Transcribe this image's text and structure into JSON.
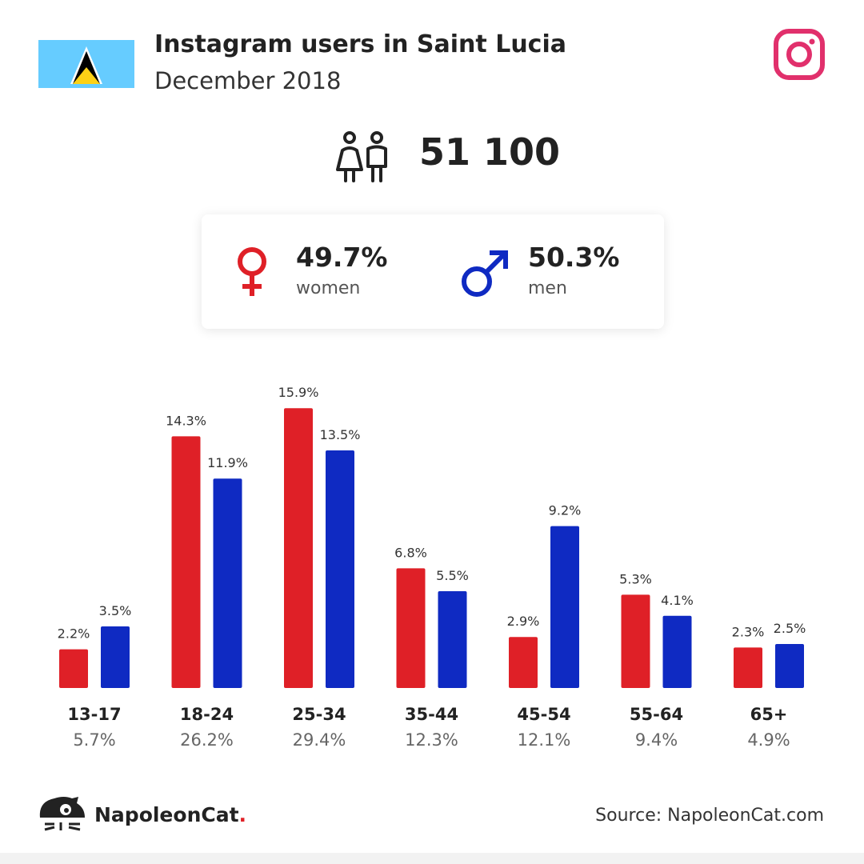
{
  "header": {
    "title": "Instagram users in Saint Lucia",
    "subtitle": "December 2018"
  },
  "summary": {
    "total_users": "51 100"
  },
  "gender": {
    "women": {
      "pct": "49.7%",
      "label": "women"
    },
    "men": {
      "pct": "50.3%",
      "label": "men"
    }
  },
  "colors": {
    "women": "#df2027",
    "men": "#0f2ac2",
    "instagram": "#e1306c",
    "flag_blue": "#66ccff",
    "flag_gold": "#fcd116"
  },
  "chart_data": {
    "type": "bar",
    "categories": [
      "13-17",
      "18-24",
      "25-34",
      "35-44",
      "45-54",
      "55-64",
      "65+"
    ],
    "category_totals": [
      "5.7%",
      "26.2%",
      "29.4%",
      "12.3%",
      "12.1%",
      "9.4%",
      "4.9%"
    ],
    "series": [
      {
        "name": "women",
        "values": [
          2.2,
          14.3,
          15.9,
          6.8,
          2.9,
          5.3,
          2.3
        ],
        "color": "#df2027"
      },
      {
        "name": "men",
        "values": [
          3.5,
          11.9,
          13.5,
          5.5,
          9.2,
          4.1,
          2.5
        ],
        "color": "#0f2ac2"
      }
    ],
    "value_suffix": "%",
    "ylim": [
      0,
      16
    ],
    "grid": false,
    "title": "",
    "xlabel": "",
    "ylabel": ""
  },
  "footer": {
    "brand_name": "NapoleonCat",
    "brand_dot": ".",
    "source": "Source: NapoleonCat.com"
  },
  "icons": {
    "flag": "saint-lucia-flag-icon",
    "instagram": "instagram-icon",
    "users": "users-icon",
    "female": "female-icon",
    "male": "male-icon",
    "brand": "napoleoncat-logo-icon"
  }
}
